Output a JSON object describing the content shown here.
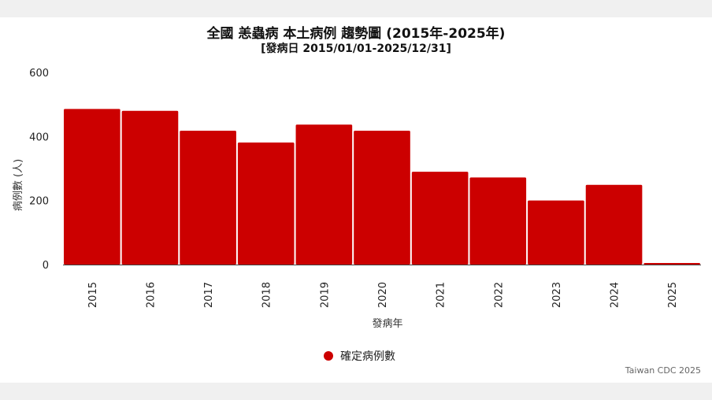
{
  "chart_data": {
    "type": "bar",
    "title": "全國 恙蟲病 本土病例 趨勢圖 (2015年-2025年)",
    "subtitle": "[發病日 2015/01/01-2025/12/31]",
    "xlabel": "發病年",
    "ylabel": "病例數 (人)",
    "categories": [
      "2015",
      "2016",
      "2017",
      "2018",
      "2019",
      "2020",
      "2021",
      "2022",
      "2023",
      "2024",
      "2025"
    ],
    "series": [
      {
        "name": "確定病例數",
        "values": [
          486,
          480,
          418,
          381,
          437,
          418,
          290,
          272,
          200,
          249,
          5
        ],
        "color": "#cc0000"
      }
    ],
    "ylim": [
      0,
      600
    ],
    "yticks": [
      0,
      200,
      400,
      600
    ],
    "grid": false,
    "legend_position": "bottom"
  },
  "credit": "Taiwan CDC 2025"
}
